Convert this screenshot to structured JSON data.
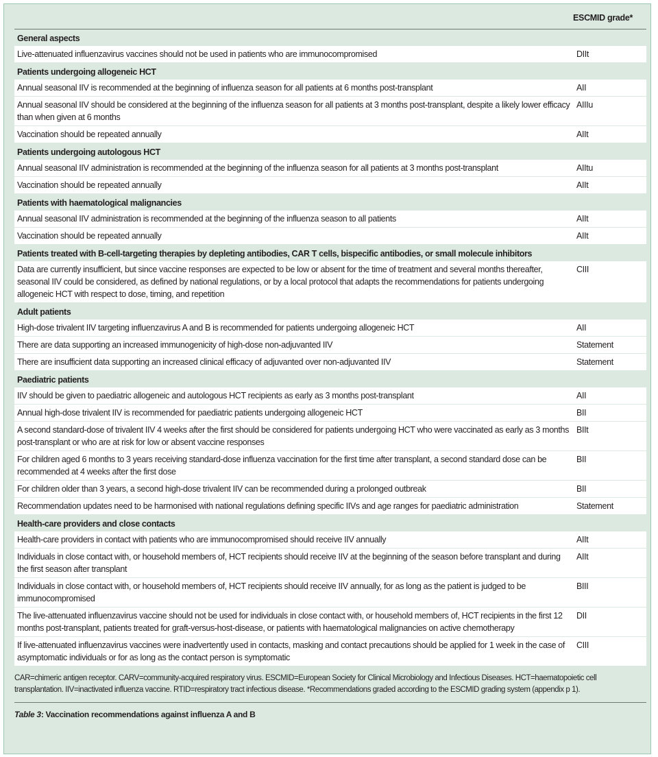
{
  "header": {
    "grade_col": "ESCMID grade*"
  },
  "sections": [
    {
      "title": "General aspects",
      "rows": [
        {
          "text": "Live-attenuated influenzavirus vaccines should not be used in patients who are immunocompromised",
          "grade": "DIIt"
        }
      ]
    },
    {
      "title": "Patients undergoing allogeneic HCT",
      "rows": [
        {
          "text": "Annual seasonal IIV is recommended at the beginning of influenza season for all patients at 6 months post-transplant",
          "grade": "AII"
        },
        {
          "text": "Annual seasonal IIV should be considered at the beginning of the influenza season for all patients at 3 months post-transplant, despite a likely lower efficacy than when given at 6 months",
          "grade": "AIIIu"
        },
        {
          "text": "Vaccination should be repeated annually",
          "grade": "AIIt"
        }
      ]
    },
    {
      "title": "Patients undergoing autologous HCT",
      "rows": [
        {
          "text": "Annual seasonal IIV administration is recommended at the beginning of the influenza season for all patients at 3 months post-transplant",
          "grade": "AIItu"
        },
        {
          "text": "Vaccination should be repeated annually",
          "grade": "AIIt"
        }
      ]
    },
    {
      "title": "Patients with haematological malignancies",
      "rows": [
        {
          "text": "Annual seasonal IIV administration is recommended at the beginning of the influenza season to all patients",
          "grade": "AIIt"
        },
        {
          "text": "Vaccination should be repeated annually",
          "grade": "AIIt"
        }
      ]
    },
    {
      "title": "Patients treated with B-cell-targeting therapies by depleting antibodies, CAR T cells, bispecific antibodies, or small molecule inhibitors",
      "rows": [
        {
          "text": "Data are currently insufficient, but since vaccine responses are expected to be low or absent for the time of treatment and several months thereafter, seasonal IIV could be considered, as defined by national regulations, or by a local protocol that adapts the recommendations for patients undergoing allogeneic HCT with respect to dose, timing, and repetition",
          "grade": "CIII"
        }
      ]
    },
    {
      "title": "Adult patients",
      "rows": [
        {
          "text": "High-dose trivalent IIV targeting influenzavirus A and B is recommended for patients undergoing allogeneic HCT",
          "grade": "AII"
        },
        {
          "text": "There are data supporting an increased immunogenicity of high-dose non-adjuvanted IIV",
          "grade": "Statement"
        },
        {
          "text": "There are insufficient data supporting an increased clinical efficacy of adjuvanted over non-adjuvanted IIV",
          "grade": "Statement"
        }
      ]
    },
    {
      "title": "Paediatric patients",
      "rows": [
        {
          "text": "IIV should be given to paediatric allogeneic and autologous HCT recipients as early as 3 months post-transplant",
          "grade": "AII"
        },
        {
          "text": "Annual high-dose trivalent IIV is recommended for paediatric patients undergoing allogeneic HCT",
          "grade": "BII"
        },
        {
          "text": "A second standard-dose of trivalent IIV 4 weeks after the first should be considered for patients undergoing HCT who were vaccinated as early as 3 months post-transplant or who are at risk for low or absent vaccine responses",
          "grade": "BIIt"
        },
        {
          "text": "For children aged 6 months to 3 years receiving standard-dose influenza vaccination for the first time after transplant, a second standard dose can be recommended at 4 weeks after the first dose",
          "grade": "BII"
        },
        {
          "text": "For children older than 3 years, a second high-dose trivalent IIV can be recommended during a prolonged outbreak",
          "grade": "BII"
        },
        {
          "text": "Recommendation updates need to be harmonised with national regulations defining specific IIVs and age ranges for paediatric administration",
          "grade": "Statement"
        }
      ]
    },
    {
      "title": "Health-care providers and close contacts",
      "rows": [
        {
          "text": "Health-care providers in contact with patients who are immunocompromised should receive IIV annually",
          "grade": "AIIt"
        },
        {
          "text": "Individuals in close contact with, or household members of, HCT recipients should receive IIV at the beginning of the season before transplant and during the first season after transplant",
          "grade": "AIIt"
        },
        {
          "text": "Individuals in close contact with, or household members of, HCT recipients should receive IIV annually, for as long as the patient is judged to be immunocompromised",
          "grade": "BIII"
        },
        {
          "text": "The live-attenuated influenzavirus vaccine should not be used for individuals in close contact with, or household members of, HCT recipients in the first 12 months post-transplant, patients treated for graft-versus-host-disease, or patients with haematological malignancies on active chemotherapy",
          "grade": "DII"
        },
        {
          "text": "If live-attenuated influenzavirus vaccines were inadvertently used in contacts, masking and contact precautions should be applied for 1 week in the case of asymptomatic individuals or for as long as the contact person is symptomatic",
          "grade": "CIII"
        }
      ]
    }
  ],
  "footnote": "CAR=chimeric antigen receptor. CARV=community-acquired respiratory virus. ESCMID=European Society for Clinical Microbiology and Infectious Diseases. HCT=haematopoietic cell transplantation. IIV=inactivated influenza vaccine. RTID=respiratory tract infectious disease. *Recommendations graded according to the ESCMID grading system (appendix p 1).",
  "caption": {
    "label": "Table 3",
    "text": ": Vaccination recommendations against influenza A and B"
  },
  "colors": {
    "panel": "#dce9e1",
    "border": "#9cc7b0",
    "row": "#ffffff"
  }
}
